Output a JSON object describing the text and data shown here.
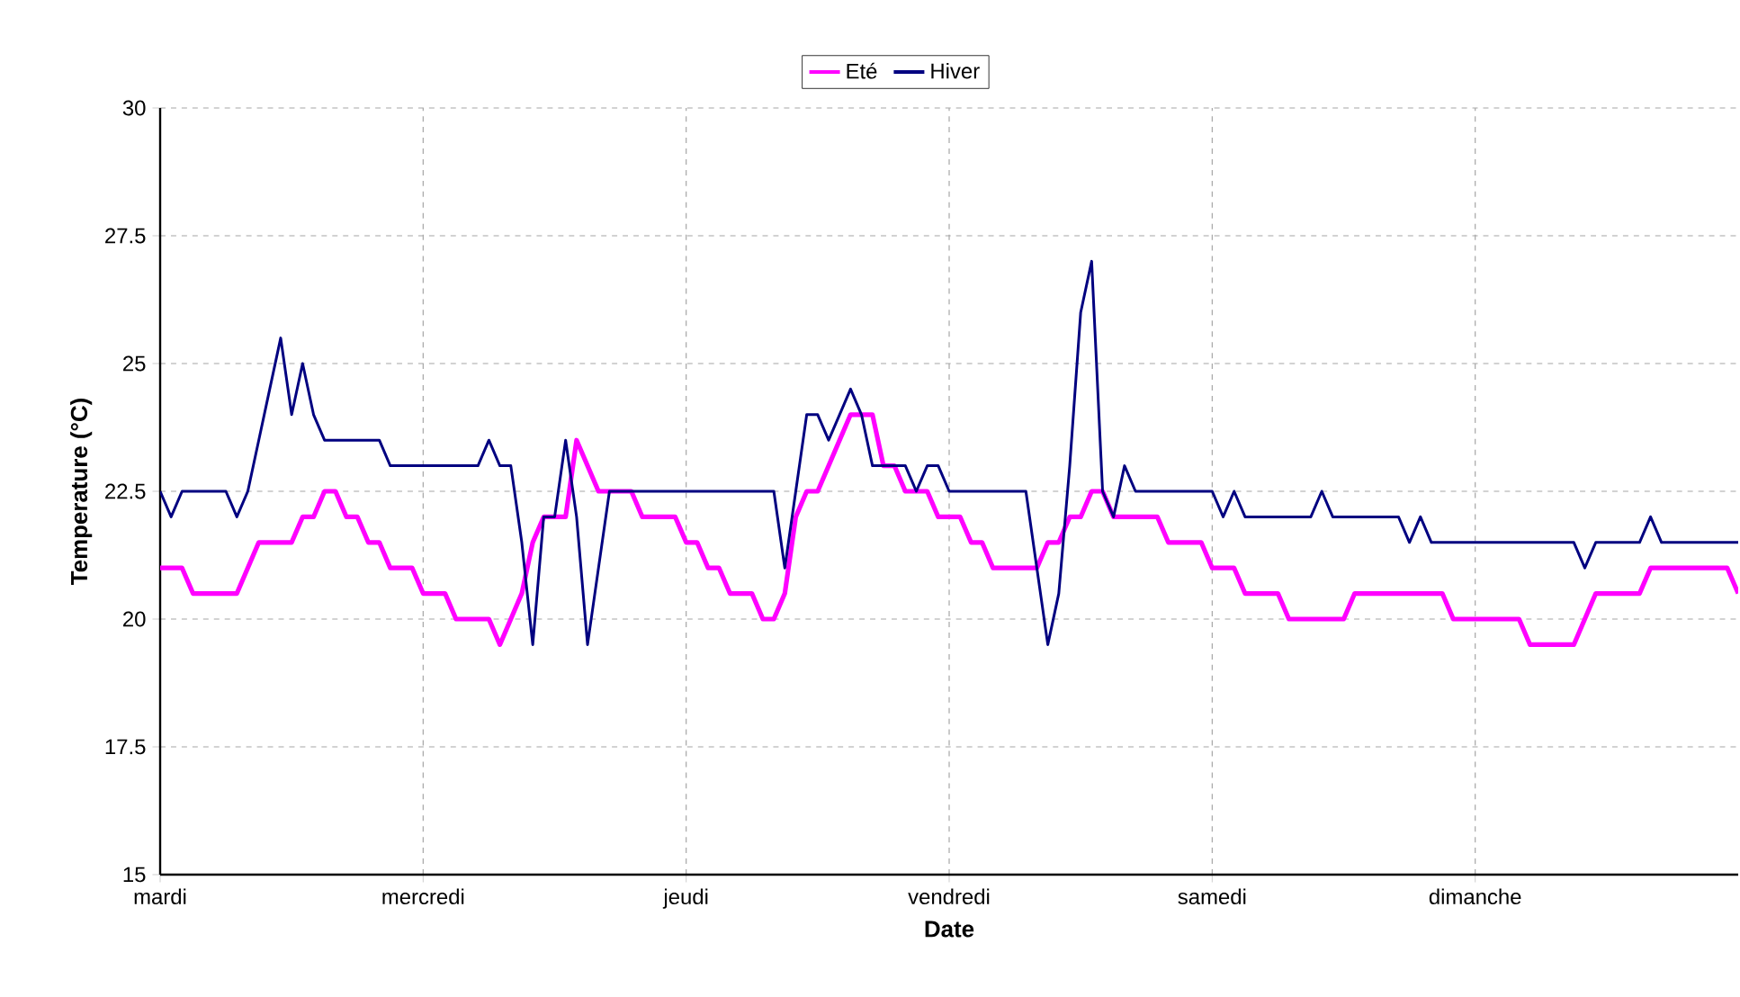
{
  "chart_data": {
    "type": "line",
    "xlabel": "Date",
    "ylabel": "Temperature (°C)",
    "ylim": [
      15,
      30
    ],
    "yticks": [
      15,
      17.5,
      20,
      22.5,
      25,
      27.5,
      30
    ],
    "grid": true,
    "legend": "top",
    "marker": "none",
    "line_style": "solid",
    "categories": [
      "mardi",
      null,
      null,
      null,
      null,
      null,
      null,
      null,
      null,
      null,
      null,
      null,
      null,
      null,
      null,
      null,
      null,
      null,
      null,
      null,
      null,
      null,
      null,
      null,
      "mercredi",
      null,
      null,
      null,
      null,
      null,
      null,
      null,
      null,
      null,
      null,
      null,
      null,
      null,
      null,
      null,
      null,
      null,
      null,
      null,
      null,
      null,
      null,
      null,
      "jeudi",
      null,
      null,
      null,
      null,
      null,
      null,
      null,
      null,
      null,
      null,
      null,
      null,
      null,
      null,
      null,
      null,
      null,
      null,
      null,
      null,
      null,
      null,
      null,
      "vendredi",
      null,
      null,
      null,
      null,
      null,
      null,
      null,
      null,
      null,
      null,
      null,
      null,
      null,
      null,
      null,
      null,
      null,
      null,
      null,
      null,
      null,
      null,
      null,
      "samedi",
      null,
      null,
      null,
      null,
      null,
      null,
      null,
      null,
      null,
      null,
      null,
      null,
      null,
      null,
      null,
      null,
      null,
      null,
      null,
      null,
      null,
      null,
      null,
      "dimanche",
      null,
      null,
      null,
      null,
      null,
      null,
      null,
      null,
      null,
      null,
      null,
      null,
      null,
      null,
      null,
      null,
      null,
      null,
      null,
      null,
      null,
      null,
      null,
      null
    ],
    "series": [
      {
        "name": "Eté",
        "color": "#ff00ff",
        "values": [
          21,
          21,
          21,
          20.5,
          20.5,
          20.5,
          20.5,
          20.5,
          21,
          21.5,
          21.5,
          21.5,
          21.5,
          22,
          22,
          22.5,
          22.5,
          22,
          22,
          21.5,
          21.5,
          21,
          21,
          21,
          20.5,
          20.5,
          20.5,
          20,
          20,
          20,
          20,
          19.5,
          20,
          20.5,
          21.5,
          22,
          22,
          22,
          23.5,
          23,
          22.5,
          22.5,
          22.5,
          22.5,
          22,
          22,
          22,
          22,
          21.5,
          21.5,
          21,
          21,
          20.5,
          20.5,
          20.5,
          20,
          20,
          20.5,
          22,
          22.5,
          22.5,
          23,
          23.5,
          24,
          24,
          24,
          23,
          23,
          22.5,
          22.5,
          22.5,
          22,
          22,
          22,
          21.5,
          21.5,
          21,
          21,
          21,
          21,
          21,
          21.5,
          21.5,
          22,
          22,
          22.5,
          22.5,
          22,
          22,
          22,
          22,
          22,
          21.5,
          21.5,
          21.5,
          21.5,
          21,
          21,
          21,
          20.5,
          20.5,
          20.5,
          20.5,
          20,
          20,
          20,
          20,
          20,
          20,
          20.5,
          20.5,
          20.5,
          20.5,
          20.5,
          20.5,
          20.5,
          20.5,
          20.5,
          20,
          20,
          20,
          20,
          20,
          20,
          20,
          19.5,
          19.5,
          19.5,
          19.5,
          19.5,
          20,
          20.5,
          20.5,
          20.5,
          20.5,
          20.5,
          21,
          21,
          21,
          21,
          21,
          21,
          21,
          21,
          20.5
        ]
      },
      {
        "name": "Hiver",
        "color": "#000080",
        "values": [
          22.5,
          22,
          22.5,
          22.5,
          22.5,
          22.5,
          22.5,
          22,
          22.5,
          23.5,
          24.5,
          25.5,
          24,
          25,
          24,
          23.5,
          23.5,
          23.5,
          23.5,
          23.5,
          23.5,
          23,
          23,
          23,
          23,
          23,
          23,
          23,
          23,
          23,
          23.5,
          23,
          23,
          21.5,
          19.5,
          22,
          22,
          23.5,
          22,
          19.5,
          21,
          22.5,
          22.5,
          22.5,
          22.5,
          22.5,
          22.5,
          22.5,
          22.5,
          22.5,
          22.5,
          22.5,
          22.5,
          22.5,
          22.5,
          22.5,
          22.5,
          21,
          22.5,
          24,
          24,
          23.5,
          24,
          24.5,
          24,
          23,
          23,
          23,
          23,
          22.5,
          23,
          23,
          22.5,
          22.5,
          22.5,
          22.5,
          22.5,
          22.5,
          22.5,
          22.5,
          21,
          19.5,
          20.5,
          23,
          26,
          27,
          22.5,
          22,
          23,
          22.5,
          22.5,
          22.5,
          22.5,
          22.5,
          22.5,
          22.5,
          22.5,
          22,
          22.5,
          22,
          22,
          22,
          22,
          22,
          22,
          22,
          22.5,
          22,
          22,
          22,
          22,
          22,
          22,
          22,
          21.5,
          22,
          21.5,
          21.5,
          21.5,
          21.5,
          21.5,
          21.5,
          21.5,
          21.5,
          21.5,
          21.5,
          21.5,
          21.5,
          21.5,
          21.5,
          21,
          21.5,
          21.5,
          21.5,
          21.5,
          21.5,
          22,
          21.5,
          21.5,
          21.5,
          21.5,
          21.5,
          21.5,
          21.5,
          21.5
        ]
      }
    ]
  }
}
